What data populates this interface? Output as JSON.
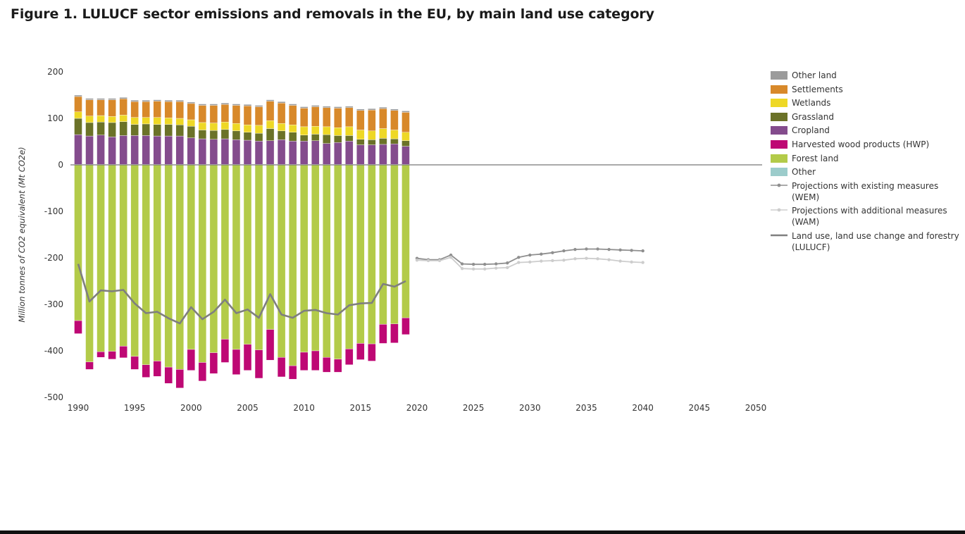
{
  "title": "Figure 1. LULUCF sector emissions and removals in the EU, by main land use category",
  "colors": {
    "other_land": "#9b9b9b",
    "settlements": "#d8892a",
    "wetlands": "#eed826",
    "grassland": "#6b7228",
    "cropland": "#844c8d",
    "hwp": "#be0874",
    "forest_land": "#b3cb49",
    "other": "#9ccccb",
    "wem": "#8f8f8f",
    "wam": "#cdcdcd",
    "lulucf": "#7f7f7f"
  },
  "legend": [
    {
      "label": "Other land",
      "kind": "box",
      "color_key": "other_land"
    },
    {
      "label": "Settlements",
      "kind": "box",
      "color_key": "settlements"
    },
    {
      "label": "Wetlands",
      "kind": "box",
      "color_key": "wetlands"
    },
    {
      "label": "Grassland",
      "kind": "box",
      "color_key": "grassland"
    },
    {
      "label": "Cropland",
      "kind": "box",
      "color_key": "cropland"
    },
    {
      "label": "Harvested wood products (HWP)",
      "kind": "box",
      "color_key": "hwp"
    },
    {
      "label": "Forest land",
      "kind": "box",
      "color_key": "forest_land"
    },
    {
      "label": "Other",
      "kind": "box",
      "color_key": "other"
    },
    {
      "label": "Projections with existing measures (WEM)",
      "kind": "marker-line",
      "color_key": "wem"
    },
    {
      "label": "Projections with additional measures (WAM)",
      "kind": "marker-line",
      "color_key": "wam"
    },
    {
      "label": "Land use, land use change and forestry (LULUCF)",
      "kind": "thick-line",
      "color_key": "lulucf"
    }
  ],
  "chart_data": {
    "type": "bar",
    "stacked": true,
    "title": "Figure 1. LULUCF sector emissions and removals in the EU, by main land use category",
    "xlabel": "",
    "ylabel": "Million tonnes of CO2 equivalent (Mt CO2e)",
    "ylim": [
      -500,
      200
    ],
    "xlim": [
      1990,
      2050
    ],
    "yticks": [
      200,
      100,
      0,
      -100,
      -200,
      -300,
      -400,
      -500
    ],
    "xticks": [
      1990,
      1995,
      2000,
      2005,
      2010,
      2015,
      2020,
      2025,
      2030,
      2035,
      2040,
      2045,
      2050
    ],
    "grid": false,
    "legend_position": "right",
    "years": [
      1990,
      1991,
      1992,
      1993,
      1994,
      1995,
      1996,
      1997,
      1998,
      1999,
      2000,
      2001,
      2002,
      2003,
      2004,
      2005,
      2006,
      2007,
      2008,
      2009,
      2010,
      2011,
      2012,
      2013,
      2014,
      2015,
      2016,
      2017,
      2018,
      2019
    ],
    "positive_series": [
      {
        "name": "Other",
        "color_key": "other",
        "values": [
          1,
          1,
          1,
          1,
          1,
          1,
          1,
          1,
          1,
          1,
          1,
          1,
          1,
          1,
          1,
          1,
          1,
          1,
          1,
          1,
          1,
          1,
          1,
          1,
          1,
          1,
          1,
          1,
          1,
          1
        ]
      },
      {
        "name": "Cropland",
        "color_key": "cropland",
        "values": [
          64,
          61,
          63,
          59,
          62,
          62,
          62,
          61,
          61,
          61,
          57,
          55,
          54,
          55,
          53,
          52,
          50,
          51,
          53,
          50,
          50,
          51,
          45,
          47,
          50,
          42,
          42,
          43,
          44,
          39
        ]
      },
      {
        "name": "Grassland",
        "color_key": "grassland",
        "values": [
          35,
          29,
          28,
          31,
          30,
          24,
          25,
          25,
          25,
          24,
          25,
          19,
          19,
          20,
          19,
          17,
          17,
          26,
          19,
          19,
          13,
          14,
          19,
          15,
          12,
          12,
          11,
          13,
          11,
          12
        ]
      },
      {
        "name": "Wetlands",
        "color_key": "wetlands",
        "values": [
          14,
          14,
          14,
          13,
          14,
          15,
          14,
          15,
          14,
          14,
          14,
          16,
          16,
          16,
          16,
          16,
          17,
          17,
          16,
          16,
          18,
          17,
          17,
          17,
          19,
          20,
          19,
          21,
          19,
          18
        ]
      },
      {
        "name": "Settlements",
        "color_key": "settlements",
        "values": [
          33,
          35,
          34,
          36,
          35,
          34,
          34,
          35,
          35,
          36,
          35,
          37,
          38,
          38,
          39,
          41,
          40,
          42,
          44,
          42,
          40,
          42,
          41,
          42,
          41,
          42,
          45,
          43,
          42,
          43
        ]
      },
      {
        "name": "Other land",
        "color_key": "other_land",
        "values": [
          3,
          3,
          3,
          3,
          3,
          3,
          3,
          3,
          3,
          3,
          3,
          3,
          3,
          3,
          3,
          3,
          3,
          3,
          3,
          3,
          3,
          3,
          3,
          3,
          3,
          3,
          3,
          3,
          3,
          3
        ]
      }
    ],
    "negative_series": [
      {
        "name": "Forest land",
        "color_key": "forest_land",
        "values": [
          -335,
          -424,
          -402,
          -401,
          -390,
          -412,
          -430,
          -422,
          -435,
          -440,
          -397,
          -425,
          -404,
          -375,
          -397,
          -386,
          -398,
          -354,
          -414,
          -432,
          -403,
          -400,
          -414,
          -418,
          -396,
          -384,
          -385,
          -343,
          -342,
          -329
        ]
      },
      {
        "name": "Harvested wood products (HWP)",
        "color_key": "hwp",
        "values": [
          -28,
          -16,
          -12,
          -17,
          -25,
          -28,
          -27,
          -33,
          -35,
          -40,
          -45,
          -40,
          -45,
          -50,
          -54,
          -56,
          -61,
          -66,
          -42,
          -29,
          -39,
          -42,
          -32,
          -28,
          -34,
          -35,
          -37,
          -41,
          -41,
          -36
        ]
      }
    ],
    "lines": [
      {
        "name": "Land use, land use change and forestry (LULUCF)",
        "color_key": "lulucf",
        "style": "thick",
        "x": [
          1990,
          1991,
          1992,
          1993,
          1994,
          1995,
          1996,
          1997,
          1998,
          1999,
          2000,
          2001,
          2002,
          2003,
          2004,
          2005,
          2006,
          2007,
          2008,
          2009,
          2010,
          2011,
          2012,
          2013,
          2014,
          2015,
          2016,
          2017,
          2018,
          2019
        ],
        "y": [
          -213,
          -294,
          -270,
          -272,
          -269,
          -298,
          -319,
          -316,
          -330,
          -341,
          -306,
          -332,
          -316,
          -290,
          -319,
          -311,
          -329,
          -278,
          -322,
          -329,
          -314,
          -312,
          -319,
          -322,
          -302,
          -298,
          -297,
          -256,
          -262,
          -250
        ]
      },
      {
        "name": "Projections with existing measures (WEM)",
        "color_key": "wem",
        "style": "marker",
        "x": [
          2020,
          2021,
          2022,
          2023,
          2024,
          2025,
          2026,
          2027,
          2028,
          2029,
          2030,
          2031,
          2032,
          2033,
          2034,
          2035,
          2036,
          2037,
          2038,
          2039,
          2040
        ],
        "y": [
          -201,
          -204,
          -204,
          -194,
          -213,
          -214,
          -214,
          -213,
          -211,
          -199,
          -194,
          -192,
          -189,
          -185,
          -182,
          -181,
          -181,
          -182,
          -183,
          -184,
          -185
        ]
      },
      {
        "name": "Projections with additional measures (WAM)",
        "color_key": "wam",
        "style": "marker",
        "x": [
          2020,
          2021,
          2022,
          2023,
          2024,
          2025,
          2026,
          2027,
          2028,
          2029,
          2030,
          2031,
          2032,
          2033,
          2034,
          2035,
          2036,
          2037,
          2038,
          2039,
          2040
        ],
        "y": [
          -205,
          -206,
          -206,
          -199,
          -223,
          -224,
          -224,
          -222,
          -221,
          -210,
          -209,
          -207,
          -206,
          -205,
          -202,
          -201,
          -202,
          -204,
          -207,
          -209,
          -210
        ]
      }
    ]
  }
}
